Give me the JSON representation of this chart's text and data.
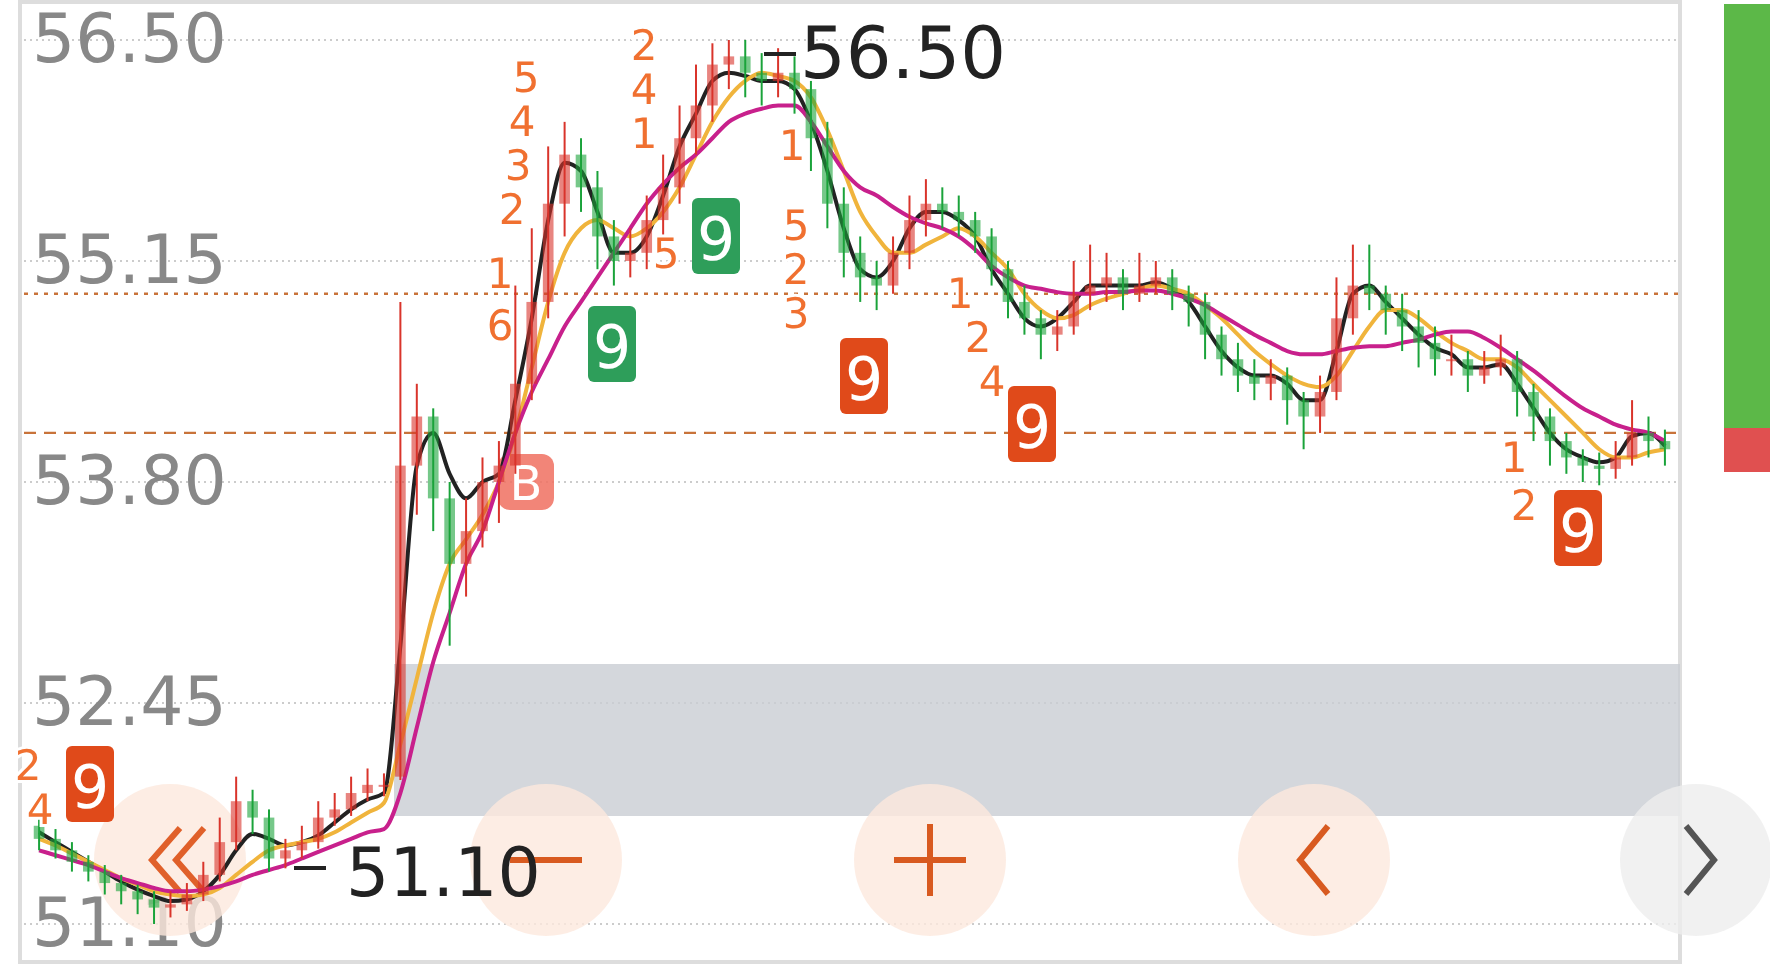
{
  "chart_data": {
    "type": "candlestick",
    "categories": [
      null,
      null,
      null,
      null,
      null,
      null,
      null,
      null,
      null,
      null,
      null,
      null,
      null,
      null,
      null,
      null,
      null,
      null,
      null,
      null,
      null,
      null,
      null,
      null,
      null,
      null,
      null,
      null,
      null,
      null,
      null,
      null,
      null,
      null,
      null,
      null,
      null,
      null,
      null,
      null,
      null,
      null,
      null,
      null,
      null,
      null,
      null,
      null,
      null,
      null,
      null,
      null,
      null,
      null,
      null,
      null,
      null,
      null,
      null,
      null,
      null,
      null,
      null,
      null,
      null,
      null,
      null,
      null,
      null,
      null,
      null,
      null,
      null,
      null,
      null,
      null,
      null,
      null,
      null,
      null,
      null,
      null,
      null,
      null,
      null,
      null,
      null,
      null,
      null,
      null,
      null,
      null,
      null,
      null,
      null,
      null,
      null,
      null,
      null,
      null
    ],
    "ohlc": [
      [
        51.7,
        51.75,
        51.55,
        51.62
      ],
      [
        51.62,
        51.68,
        51.5,
        51.55
      ],
      [
        51.55,
        51.6,
        51.42,
        51.48
      ],
      [
        51.48,
        51.52,
        51.36,
        51.42
      ],
      [
        51.42,
        51.46,
        51.28,
        51.35
      ],
      [
        51.35,
        51.4,
        51.22,
        51.3
      ],
      [
        51.3,
        51.34,
        51.16,
        51.25
      ],
      [
        51.25,
        51.3,
        51.1,
        51.2
      ],
      [
        51.2,
        51.3,
        51.14,
        51.22
      ],
      [
        51.22,
        51.35,
        51.18,
        51.28
      ],
      [
        51.28,
        51.48,
        51.24,
        51.4
      ],
      [
        51.4,
        51.75,
        51.36,
        51.6
      ],
      [
        51.6,
        52.0,
        51.55,
        51.85
      ],
      [
        51.85,
        51.92,
        51.65,
        51.75
      ],
      [
        51.75,
        51.8,
        51.42,
        51.5
      ],
      [
        51.5,
        51.62,
        51.44,
        51.55
      ],
      [
        51.55,
        51.7,
        51.5,
        51.6
      ],
      [
        51.6,
        51.85,
        51.56,
        51.75
      ],
      [
        51.75,
        51.9,
        51.7,
        51.8
      ],
      [
        51.8,
        52.0,
        51.76,
        51.9
      ],
      [
        51.9,
        52.05,
        51.85,
        51.95
      ],
      [
        51.95,
        52.02,
        51.88,
        51.95
      ],
      [
        52.0,
        54.9,
        51.98,
        53.9
      ],
      [
        53.9,
        54.4,
        53.6,
        54.2
      ],
      [
        54.2,
        54.25,
        53.5,
        53.7
      ],
      [
        53.7,
        53.8,
        52.8,
        53.3
      ],
      [
        53.3,
        53.7,
        53.1,
        53.5
      ],
      [
        53.5,
        53.95,
        53.4,
        53.8
      ],
      [
        53.8,
        54.05,
        53.55,
        53.9
      ],
      [
        53.9,
        55.0,
        53.85,
        54.4
      ],
      [
        54.4,
        55.35,
        54.3,
        54.9
      ],
      [
        54.9,
        55.85,
        54.8,
        55.5
      ],
      [
        55.5,
        56.0,
        55.3,
        55.8
      ],
      [
        55.8,
        55.9,
        55.45,
        55.6
      ],
      [
        55.6,
        55.7,
        55.1,
        55.3
      ],
      [
        55.3,
        55.4,
        55.0,
        55.15
      ],
      [
        55.15,
        55.35,
        55.05,
        55.2
      ],
      [
        55.2,
        55.55,
        55.1,
        55.4
      ],
      [
        55.4,
        55.8,
        55.3,
        55.6
      ],
      [
        55.6,
        56.1,
        55.5,
        55.9
      ],
      [
        55.9,
        56.35,
        55.8,
        56.1
      ],
      [
        56.1,
        56.48,
        56.0,
        56.35
      ],
      [
        56.35,
        56.5,
        56.2,
        56.4
      ],
      [
        56.4,
        56.5,
        56.15,
        56.3
      ],
      [
        56.3,
        56.42,
        56.1,
        56.25
      ],
      [
        56.25,
        56.45,
        56.15,
        56.3
      ],
      [
        56.3,
        56.4,
        56.05,
        56.2
      ],
      [
        56.2,
        56.25,
        55.7,
        55.9
      ],
      [
        55.9,
        56.0,
        55.35,
        55.5
      ],
      [
        55.5,
        55.6,
        55.05,
        55.2
      ],
      [
        55.2,
        55.3,
        54.9,
        55.05
      ],
      [
        55.05,
        55.15,
        54.85,
        55.0
      ],
      [
        55.0,
        55.3,
        54.95,
        55.2
      ],
      [
        55.2,
        55.55,
        55.1,
        55.4
      ],
      [
        55.4,
        55.65,
        55.3,
        55.5
      ],
      [
        55.5,
        55.6,
        55.35,
        55.45
      ],
      [
        55.45,
        55.55,
        55.3,
        55.4
      ],
      [
        55.4,
        55.45,
        55.2,
        55.3
      ],
      [
        55.3,
        55.35,
        55.0,
        55.1
      ],
      [
        55.1,
        55.15,
        54.8,
        54.9
      ],
      [
        54.9,
        55.0,
        54.7,
        54.8
      ],
      [
        54.8,
        54.85,
        54.55,
        54.7
      ],
      [
        54.7,
        54.85,
        54.6,
        54.75
      ],
      [
        54.75,
        55.15,
        54.7,
        54.95
      ],
      [
        54.95,
        55.25,
        54.85,
        55.0
      ],
      [
        55.0,
        55.2,
        54.9,
        55.05
      ],
      [
        55.05,
        55.1,
        54.85,
        54.95
      ],
      [
        54.95,
        55.2,
        54.9,
        55.0
      ],
      [
        55.0,
        55.15,
        54.95,
        55.05
      ],
      [
        55.05,
        55.1,
        54.85,
        54.95
      ],
      [
        54.95,
        55.0,
        54.75,
        54.9
      ],
      [
        54.9,
        54.95,
        54.55,
        54.7
      ],
      [
        54.7,
        54.75,
        54.45,
        54.55
      ],
      [
        54.55,
        54.65,
        54.35,
        54.45
      ],
      [
        54.45,
        54.55,
        54.3,
        54.4
      ],
      [
        54.4,
        54.55,
        54.3,
        54.45
      ],
      [
        54.45,
        54.5,
        54.15,
        54.3
      ],
      [
        54.3,
        54.35,
        54.0,
        54.2
      ],
      [
        54.2,
        54.45,
        54.1,
        54.35
      ],
      [
        54.35,
        55.05,
        54.3,
        54.8
      ],
      [
        54.8,
        55.25,
        54.7,
        55.0
      ],
      [
        55.0,
        55.25,
        54.85,
        54.95
      ],
      [
        54.95,
        55.0,
        54.7,
        54.85
      ],
      [
        54.85,
        54.95,
        54.6,
        54.75
      ],
      [
        54.75,
        54.85,
        54.5,
        54.65
      ],
      [
        54.65,
        54.75,
        54.45,
        54.55
      ],
      [
        54.55,
        54.7,
        54.45,
        54.55
      ],
      [
        54.55,
        54.6,
        54.35,
        54.45
      ],
      [
        54.45,
        54.6,
        54.4,
        54.5
      ],
      [
        54.5,
        54.7,
        54.45,
        54.55
      ],
      [
        54.55,
        54.6,
        54.2,
        54.35
      ],
      [
        54.35,
        54.4,
        54.05,
        54.2
      ],
      [
        54.2,
        54.25,
        53.9,
        54.05
      ],
      [
        54.05,
        54.1,
        53.85,
        53.95
      ],
      [
        53.95,
        54.0,
        53.8,
        53.9
      ],
      [
        53.9,
        53.98,
        53.78,
        53.88
      ],
      [
        53.88,
        54.05,
        53.82,
        53.95
      ],
      [
        53.95,
        54.3,
        53.9,
        54.1
      ],
      [
        54.1,
        54.2,
        53.95,
        54.05
      ],
      [
        54.05,
        54.12,
        53.9,
        54.0
      ]
    ],
    "series": [
      {
        "type": "line",
        "color": "#222222",
        "values": [
          51.66,
          51.6,
          51.54,
          51.48,
          51.42,
          51.36,
          51.31,
          51.27,
          51.24,
          51.25,
          51.3,
          51.4,
          51.55,
          51.65,
          51.62,
          51.58,
          51.6,
          51.64,
          51.72,
          51.8,
          51.86,
          51.9,
          52.8,
          53.9,
          54.1,
          53.85,
          53.7,
          53.8,
          53.85,
          54.3,
          54.8,
          55.4,
          55.75,
          55.7,
          55.45,
          55.2,
          55.2,
          55.3,
          55.55,
          55.85,
          56.05,
          56.25,
          56.3,
          56.28,
          56.25,
          56.25,
          56.2,
          56.0,
          55.7,
          55.35,
          55.1,
          55.05,
          55.15,
          55.35,
          55.45,
          55.45,
          55.4,
          55.3,
          55.1,
          54.95,
          54.8,
          54.75,
          54.8,
          54.9,
          55.0,
          55.0,
          55.0,
          55.0,
          55.02,
          54.98,
          54.9,
          54.75,
          54.6,
          54.5,
          54.45,
          54.45,
          54.4,
          54.3,
          54.3,
          54.6,
          54.95,
          55.0,
          54.9,
          54.8,
          54.7,
          54.62,
          54.58,
          54.5,
          54.5,
          54.52,
          54.4,
          54.25,
          54.1,
          54.0,
          53.95,
          53.92,
          53.95,
          54.08,
          54.1,
          54.02
        ]
      },
      {
        "type": "line",
        "color": "#f0b43c",
        "values": [
          51.62,
          51.58,
          51.53,
          51.48,
          51.43,
          51.38,
          51.34,
          51.3,
          51.28,
          51.27,
          51.28,
          51.32,
          51.4,
          51.48,
          51.55,
          51.58,
          51.6,
          51.62,
          51.66,
          51.72,
          51.78,
          51.84,
          52.2,
          52.6,
          53.0,
          53.3,
          53.45,
          53.6,
          53.8,
          54.1,
          54.5,
          54.9,
          55.2,
          55.35,
          55.4,
          55.35,
          55.3,
          55.35,
          55.45,
          55.6,
          55.8,
          56.0,
          56.15,
          56.25,
          56.3,
          56.28,
          56.25,
          56.15,
          55.95,
          55.7,
          55.45,
          55.3,
          55.2,
          55.2,
          55.25,
          55.3,
          55.35,
          55.3,
          55.2,
          55.1,
          54.95,
          54.85,
          54.8,
          54.82,
          54.88,
          54.92,
          54.95,
          54.98,
          55.0,
          54.98,
          54.95,
          54.88,
          54.8,
          54.7,
          54.6,
          54.52,
          54.45,
          54.4,
          54.38,
          54.45,
          54.6,
          54.75,
          54.85,
          54.85,
          54.8,
          54.72,
          54.65,
          54.6,
          54.55,
          54.55,
          54.5,
          54.4,
          54.3,
          54.2,
          54.1,
          54.0,
          53.95,
          53.95,
          53.98,
          54.0
        ]
      },
      {
        "type": "line",
        "color": "#c8208c",
        "values": [
          51.55,
          51.52,
          51.49,
          51.46,
          51.42,
          51.38,
          51.35,
          51.32,
          51.3,
          51.3,
          51.31,
          51.33,
          51.36,
          51.4,
          51.43,
          51.46,
          51.5,
          51.54,
          51.58,
          51.62,
          51.66,
          51.68,
          51.9,
          52.3,
          52.7,
          53.0,
          53.3,
          53.5,
          53.8,
          54.1,
          54.35,
          54.55,
          54.75,
          54.9,
          55.05,
          55.2,
          55.35,
          55.5,
          55.62,
          55.72,
          55.8,
          55.9,
          56.0,
          56.05,
          56.08,
          56.1,
          56.1,
          56.0,
          55.85,
          55.7,
          55.6,
          55.55,
          55.48,
          55.42,
          55.38,
          55.35,
          55.3,
          55.22,
          55.12,
          55.05,
          55.0,
          54.98,
          54.96,
          54.95,
          54.95,
          54.96,
          54.96,
          54.97,
          54.97,
          54.95,
          54.92,
          54.88,
          54.82,
          54.76,
          54.7,
          54.65,
          54.6,
          54.58,
          54.58,
          54.6,
          54.62,
          54.63,
          54.63,
          54.65,
          54.67,
          54.7,
          54.72,
          54.72,
          54.68,
          54.62,
          54.55,
          54.48,
          54.4,
          54.32,
          54.25,
          54.2,
          54.15,
          54.12,
          54.1,
          54.05
        ]
      }
    ],
    "ylim": [
      50.88,
      56.72
    ],
    "yticks": [
      {
        "value": 56.5,
        "label": "56.50"
      },
      {
        "value": 55.15,
        "label": "55.15"
      },
      {
        "value": 53.8,
        "label": "53.80"
      },
      {
        "value": 52.45,
        "label": "52.45"
      },
      {
        "value": 51.1,
        "label": "51.10"
      }
    ],
    "grid": "y",
    "tick_labels": "y",
    "ref_lines": [
      {
        "axis": "y",
        "value": 54.95,
        "color": "#c8733a",
        "line_style": "dotted"
      },
      {
        "axis": "y",
        "value": 54.1,
        "color": "#c8733a",
        "line_style": "dashed"
      }
    ],
    "annotations": [
      "56.50",
      "51.10",
      "B",
      "9",
      "9",
      "9",
      "9",
      "9",
      "9",
      "5",
      "4",
      "3",
      "2",
      "1",
      "6",
      "2",
      "4",
      "1",
      "5",
      "1",
      "2",
      "5",
      "3",
      "1",
      "2",
      "4",
      "1",
      "2",
      "2",
      "4"
    ]
  }
}
